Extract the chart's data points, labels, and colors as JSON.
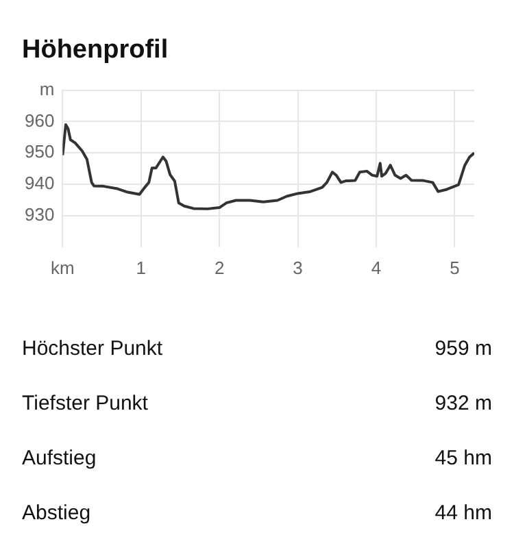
{
  "chart_data": {
    "type": "line",
    "title": "Höhenprofil",
    "x": [
      0,
      0.04,
      0.07,
      0.1,
      0.16,
      0.25,
      0.31,
      0.37,
      0.4,
      0.52,
      0.7,
      0.83,
      0.98,
      1.04,
      1.1,
      1.14,
      1.19,
      1.28,
      1.32,
      1.37,
      1.43,
      1.48,
      1.55,
      1.67,
      1.85,
      2.0,
      2.09,
      2.21,
      2.39,
      2.56,
      2.74,
      2.86,
      3.0,
      3.16,
      3.31,
      3.37,
      3.44,
      3.49,
      3.55,
      3.61,
      3.73,
      3.79,
      3.88,
      3.95,
      4.01,
      4.05,
      4.07,
      4.12,
      4.18,
      4.24,
      4.31,
      4.38,
      4.45,
      4.6,
      4.72,
      4.79,
      4.9,
      5.05,
      5.13,
      5.19,
      5.25
    ],
    "series": [
      {
        "color": "#333333",
        "values": [
          949.3,
          959,
          957.7,
          954.2,
          953.2,
          950.6,
          948,
          940.6,
          939.5,
          939.4,
          938.6,
          937.5,
          936.8,
          938.8,
          940.6,
          945.2,
          945.2,
          948.7,
          947.4,
          943.1,
          941,
          934.1,
          933.1,
          932.3,
          932.2,
          932.6,
          934.1,
          934.9,
          934.9,
          934.4,
          934.9,
          936.2,
          937.1,
          937.7,
          939,
          940.6,
          943.9,
          942.9,
          940.6,
          941.1,
          941.2,
          943.9,
          944.2,
          942.9,
          942.6,
          946.7,
          942.6,
          943.5,
          946.1,
          942.9,
          941.9,
          942.9,
          941.3,
          941.2,
          940.6,
          937.7,
          938.4,
          939.9,
          946.1,
          948.7,
          950
        ]
      }
    ],
    "xlim": [
      0,
      5.25
    ],
    "xticks": [
      {
        "value": 0,
        "label": "km"
      },
      1,
      2,
      3,
      4,
      5
    ],
    "ylim": [
      920,
      970
    ],
    "yticks": [
      930,
      940,
      950,
      960,
      {
        "value": 970,
        "label": "m"
      }
    ],
    "grid": true,
    "marker": "none",
    "line_style": "solid",
    "legend": false,
    "annotations": [
      "Höchster Punkt",
      "959 m",
      "Tiefster Punkt",
      "932 m",
      "Aufstieg",
      "45 hm",
      "Abstieg",
      "44 hm"
    ]
  }
}
